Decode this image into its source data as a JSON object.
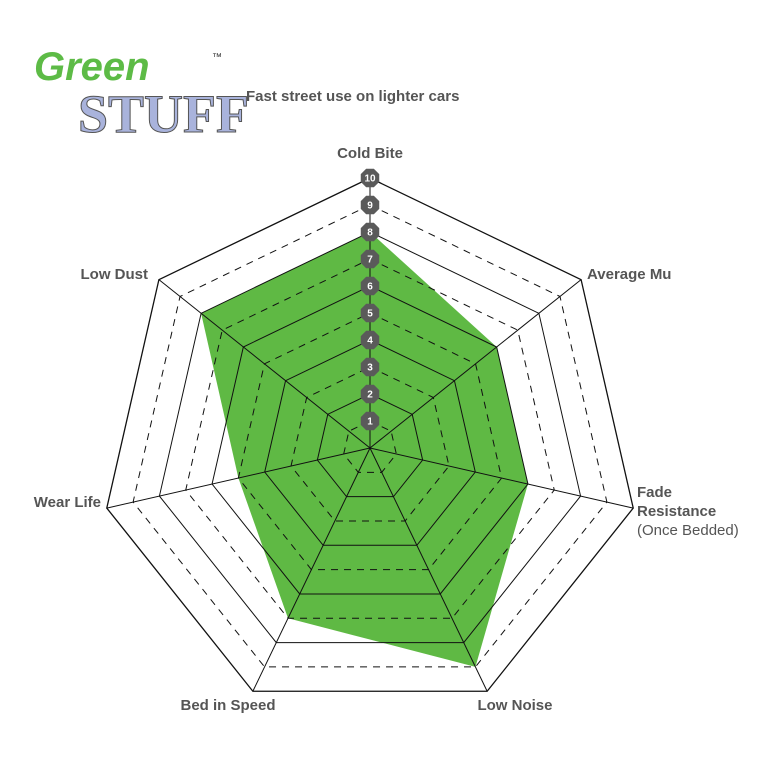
{
  "logo": {
    "line1": "Green",
    "line2": "STUFF",
    "tm": "™"
  },
  "subtitle": "Fast street use on lighter cars",
  "chart_data": {
    "type": "radar",
    "axes": [
      {
        "label": "Cold Bite",
        "sub": ""
      },
      {
        "label": "Average Mu",
        "sub": ""
      },
      {
        "label": "Fade Resistance",
        "sub": "(Once Bedded)"
      },
      {
        "label": "Low Noise",
        "sub": ""
      },
      {
        "label": "Bed in Speed",
        "sub": ""
      },
      {
        "label": "Wear Life",
        "sub": ""
      },
      {
        "label": "Low Dust",
        "sub": ""
      }
    ],
    "values": [
      8,
      6,
      6,
      9,
      7,
      5,
      8
    ],
    "range": [
      0,
      10
    ],
    "tick_labels": [
      "1",
      "2",
      "3",
      "4",
      "5",
      "6",
      "7",
      "8",
      "9",
      "10"
    ],
    "fill_color": "#5fb944",
    "grid": true
  }
}
